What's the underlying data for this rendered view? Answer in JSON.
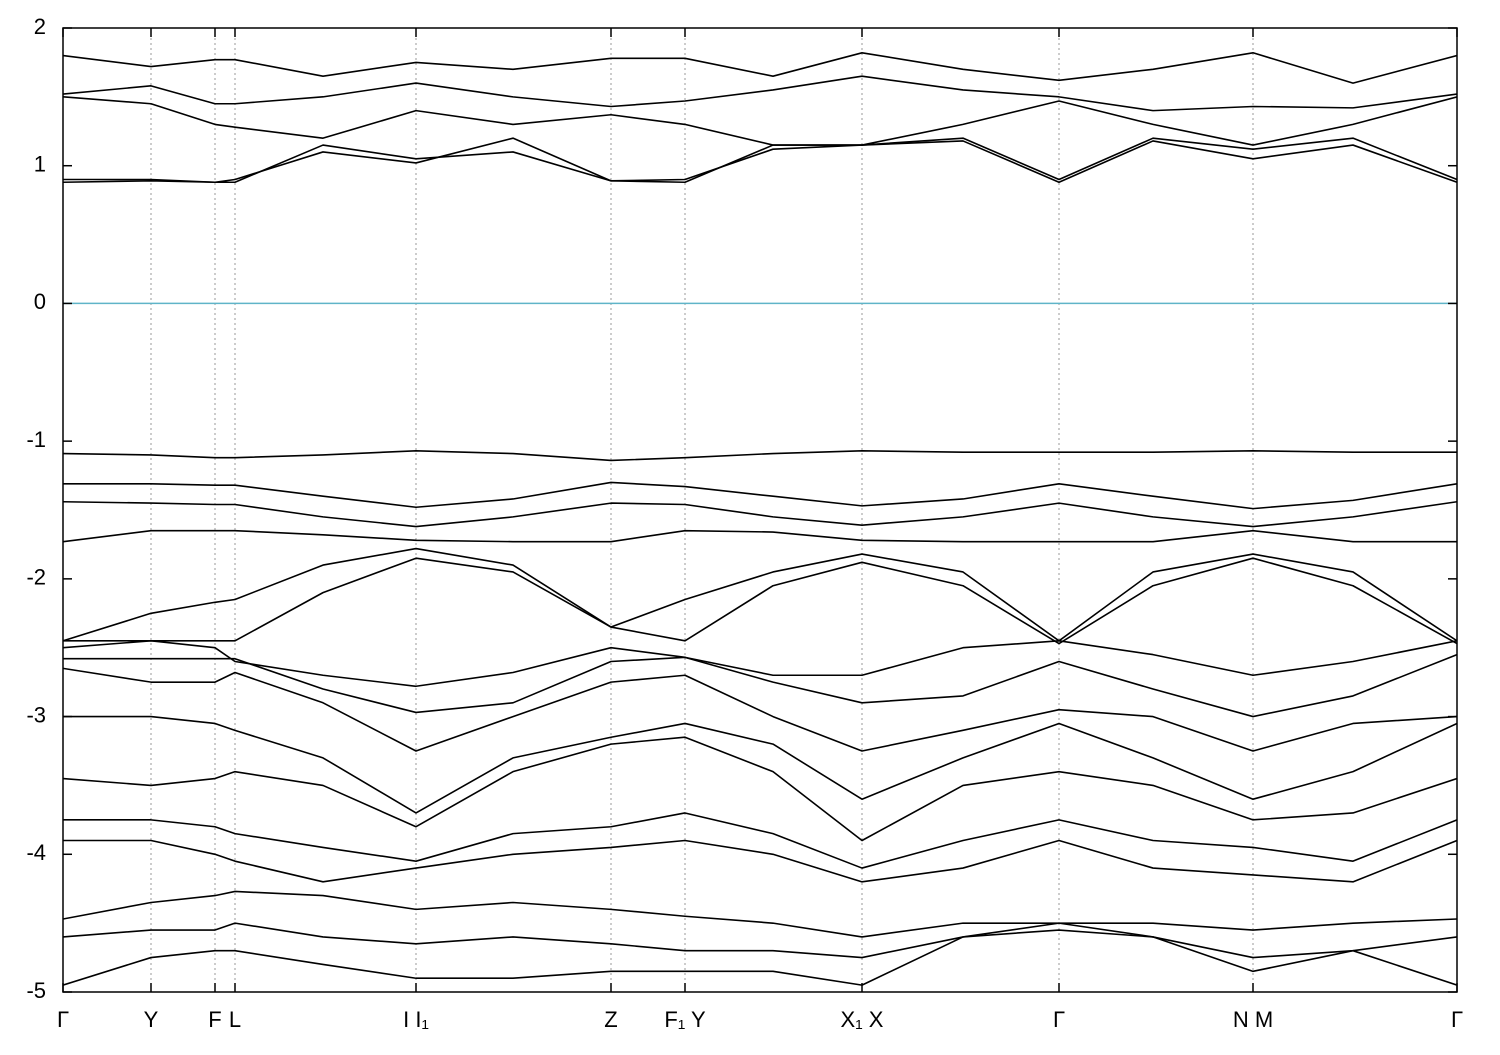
{
  "chart_data": {
    "type": "line",
    "x": [
      0,
      0.88,
      1.52,
      1.72,
      2.6,
      3.53,
      4.5,
      5.48,
      6.22,
      7.1,
      7.99,
      9.0,
      9.96,
      10.9,
      11.9,
      12.9,
      13.94
    ],
    "xlim": [
      0,
      13.94
    ],
    "xticks": [
      {
        "value": 0,
        "label": "Γ"
      },
      {
        "value": 0.88,
        "label": "Y"
      },
      {
        "value": 1.52,
        "label": "F"
      },
      {
        "value": 1.72,
        "label": "L"
      },
      {
        "value": 3.53,
        "label": "I I₁"
      },
      {
        "value": 5.48,
        "label": "Z"
      },
      {
        "value": 6.22,
        "label": "F₁ Y"
      },
      {
        "value": 7.99,
        "label": "X₁ X"
      },
      {
        "value": 9.96,
        "label": "Γ"
      },
      {
        "value": 11.9,
        "label": "N M"
      },
      {
        "value": 13.94,
        "label": "Γ"
      }
    ],
    "ylim": [
      -5,
      2
    ],
    "yticks": [
      -5,
      -4,
      -3,
      -2,
      -1,
      0,
      1,
      2
    ],
    "grid": "x",
    "color": "#000000",
    "fermi_level": 0,
    "fermi_color": "#5fb4c8",
    "series": [
      {
        "values": [
          -1.09,
          -1.1,
          -1.12,
          -1.12,
          -1.1,
          -1.07,
          -1.09,
          -1.14,
          -1.12,
          -1.09,
          -1.07,
          -1.08,
          -1.08,
          -1.08,
          -1.07,
          -1.08,
          -1.08
        ]
      },
      {
        "values": [
          -1.31,
          -1.31,
          -1.32,
          -1.32,
          -1.4,
          -1.48,
          -1.42,
          -1.3,
          -1.33,
          -1.4,
          -1.47,
          -1.42,
          -1.31,
          -1.4,
          -1.49,
          -1.43,
          -1.31
        ]
      },
      {
        "values": [
          -1.44,
          -1.45,
          -1.46,
          -1.46,
          -1.55,
          -1.62,
          -1.55,
          -1.45,
          -1.46,
          -1.55,
          -1.61,
          -1.55,
          -1.45,
          -1.55,
          -1.62,
          -1.55,
          -1.44
        ]
      },
      {
        "values": [
          -1.73,
          -1.65,
          -1.65,
          -1.65,
          -1.68,
          -1.72,
          -1.73,
          -1.73,
          -1.65,
          -1.66,
          -1.72,
          -1.73,
          -1.73,
          -1.73,
          -1.65,
          -1.73,
          -1.73
        ]
      },
      {
        "values": [
          -2.45,
          -2.25,
          -2.17,
          -2.15,
          -1.9,
          -1.78,
          -1.9,
          -2.35,
          -2.15,
          -1.95,
          -1.82,
          -1.95,
          -2.45,
          -1.95,
          -1.82,
          -1.95,
          -2.45
        ]
      },
      {
        "values": [
          -2.45,
          -2.45,
          -2.45,
          -2.45,
          -2.1,
          -1.85,
          -1.95,
          -2.35,
          -2.45,
          -2.05,
          -1.88,
          -2.05,
          -2.47,
          -2.05,
          -1.85,
          -2.05,
          -2.47
        ]
      },
      {
        "values": [
          -2.5,
          -2.45,
          -2.5,
          -2.6,
          -2.7,
          -2.78,
          -2.68,
          -2.5,
          -2.57,
          -2.7,
          -2.7,
          -2.5,
          -2.45,
          -2.55,
          -2.7,
          -2.6,
          -2.45
        ]
      },
      {
        "values": [
          -2.58,
          -2.58,
          -2.58,
          -2.58,
          -2.8,
          -2.97,
          -2.9,
          -2.6,
          -2.57,
          -2.75,
          -2.9,
          -2.85,
          -2.6,
          -2.8,
          -3.0,
          -2.85,
          -2.55
        ]
      },
      {
        "values": [
          -2.65,
          -2.75,
          -2.75,
          -2.68,
          -2.9,
          -3.25,
          -3.0,
          -2.75,
          -2.7,
          -3.0,
          -3.25,
          -3.1,
          -2.95,
          -3.0,
          -3.25,
          -3.05,
          -3.0
        ]
      },
      {
        "values": [
          -3.0,
          -3.0,
          -3.05,
          -3.1,
          -3.3,
          -3.7,
          -3.3,
          -3.15,
          -3.05,
          -3.2,
          -3.6,
          -3.3,
          -3.05,
          -3.3,
          -3.6,
          -3.4,
          -3.05
        ]
      },
      {
        "values": [
          -3.45,
          -3.5,
          -3.45,
          -3.4,
          -3.5,
          -3.8,
          -3.4,
          -3.2,
          -3.15,
          -3.4,
          -3.9,
          -3.5,
          -3.4,
          -3.5,
          -3.75,
          -3.7,
          -3.45
        ]
      },
      {
        "values": [
          -3.75,
          -3.75,
          -3.8,
          -3.85,
          -3.95,
          -4.05,
          -3.85,
          -3.8,
          -3.7,
          -3.85,
          -4.1,
          -3.9,
          -3.75,
          -3.9,
          -3.95,
          -4.05,
          -3.75
        ]
      },
      {
        "values": [
          -3.9,
          -3.9,
          -4.0,
          -4.05,
          -4.2,
          -4.1,
          -4.0,
          -3.95,
          -3.9,
          -4.0,
          -4.2,
          -4.1,
          -3.9,
          -4.1,
          -4.15,
          -4.2,
          -3.9
        ]
      },
      {
        "values": [
          -4.47,
          -4.35,
          -4.3,
          -4.27,
          -4.3,
          -4.4,
          -4.35,
          -4.4,
          -4.45,
          -4.5,
          -4.6,
          -4.5,
          -4.5,
          -4.5,
          -4.55,
          -4.5,
          -4.47
        ]
      },
      {
        "values": [
          -4.6,
          -4.55,
          -4.55,
          -4.5,
          -4.6,
          -4.65,
          -4.6,
          -4.65,
          -4.7,
          -4.7,
          -4.75,
          -4.6,
          -4.55,
          -4.6,
          -4.75,
          -4.7,
          -4.6
        ]
      },
      {
        "values": [
          -4.95,
          -4.75,
          -4.7,
          -4.7,
          -4.8,
          -4.9,
          -4.9,
          -4.85,
          -4.85,
          -4.85,
          -4.95,
          -4.6,
          -4.5,
          -4.6,
          -4.85,
          -4.7,
          -4.95
        ]
      },
      {
        "values": [
          0.88,
          0.89,
          0.88,
          0.88,
          1.15,
          1.05,
          1.1,
          0.89,
          0.88,
          1.15,
          1.15,
          1.18,
          0.88,
          1.18,
          1.05,
          1.15,
          0.88
        ]
      },
      {
        "values": [
          0.9,
          0.9,
          0.88,
          0.9,
          1.1,
          1.02,
          1.2,
          0.89,
          0.9,
          1.12,
          1.15,
          1.2,
          0.9,
          1.2,
          1.12,
          1.2,
          0.9
        ]
      },
      {
        "values": [
          1.5,
          1.45,
          1.3,
          1.28,
          1.2,
          1.4,
          1.3,
          1.37,
          1.3,
          1.15,
          1.15,
          1.3,
          1.47,
          1.3,
          1.15,
          1.3,
          1.5
        ]
      },
      {
        "values": [
          1.52,
          1.58,
          1.45,
          1.45,
          1.5,
          1.6,
          1.5,
          1.43,
          1.47,
          1.55,
          1.65,
          1.55,
          1.5,
          1.4,
          1.43,
          1.42,
          1.52
        ]
      },
      {
        "values": [
          1.8,
          1.72,
          1.77,
          1.77,
          1.65,
          1.75,
          1.7,
          1.78,
          1.78,
          1.65,
          1.82,
          1.7,
          1.62,
          1.7,
          1.82,
          1.6,
          1.8
        ]
      }
    ]
  }
}
